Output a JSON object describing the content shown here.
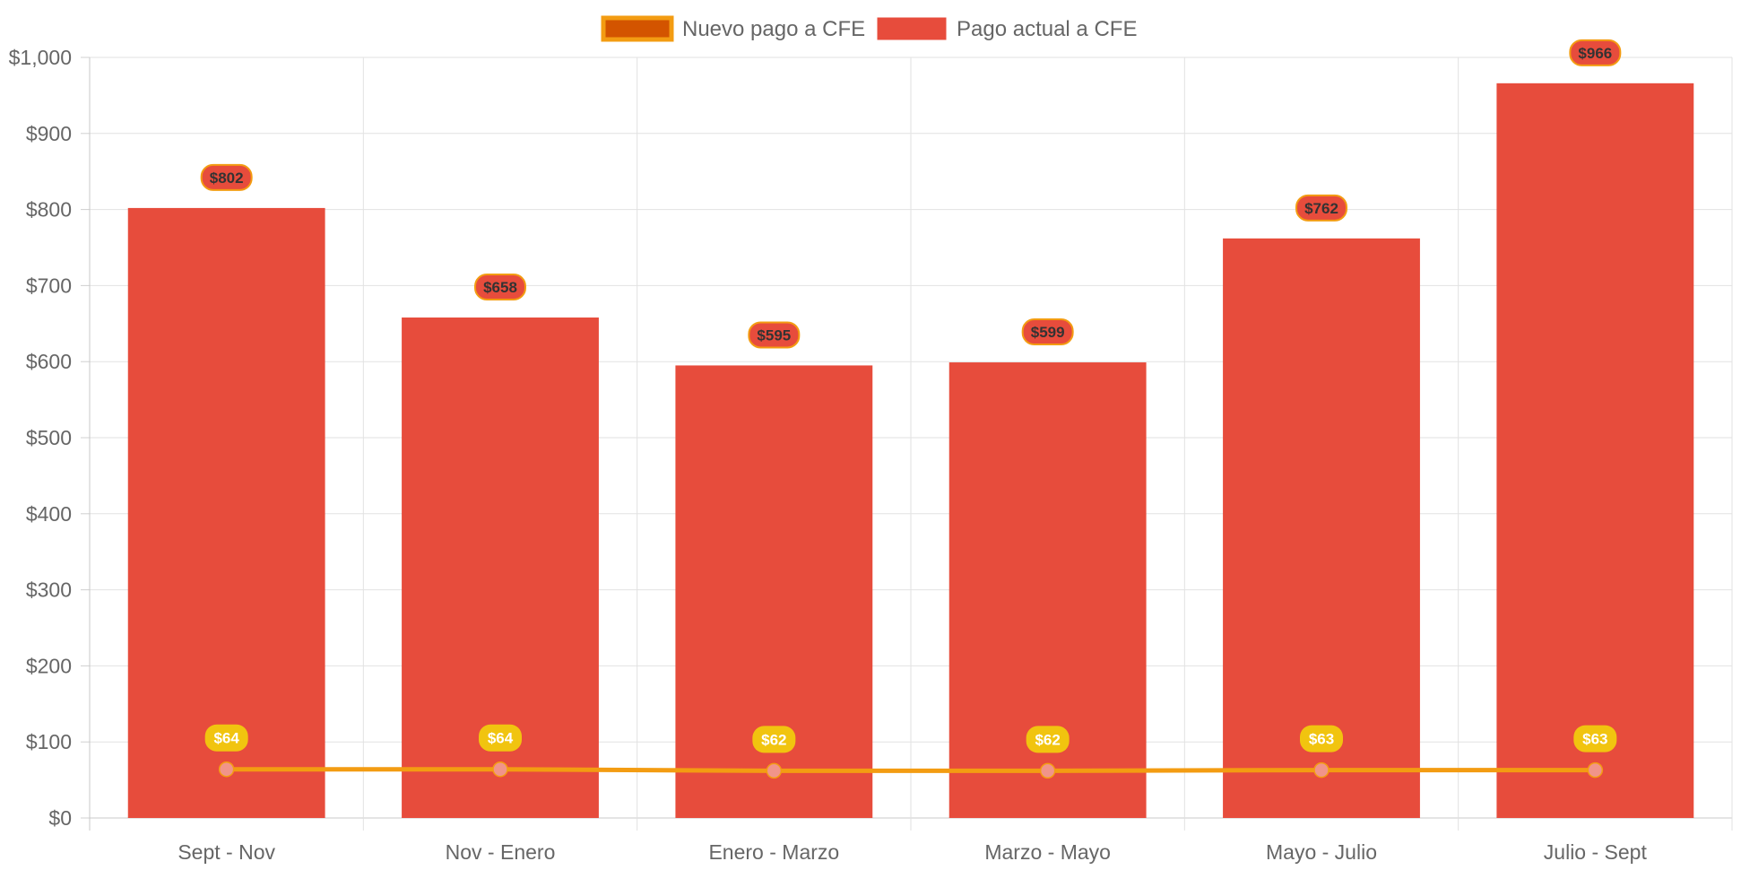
{
  "chart_data": {
    "type": "bar",
    "categories": [
      "Sept - Nov",
      "Nov - Enero",
      "Enero - Marzo",
      "Marzo - Mayo",
      "Mayo - Julio",
      "Julio - Sept"
    ],
    "series": [
      {
        "name": "Nuevo pago a CFE",
        "type": "line",
        "values": [
          64,
          64,
          62,
          62,
          63,
          63
        ],
        "labels": [
          "$64",
          "$64",
          "$62",
          "$62",
          "$63",
          "$63"
        ],
        "color": "#f39c12",
        "point_color": "#f1948a",
        "label_bg": "#f1c40f"
      },
      {
        "name": "Pago actual a CFE",
        "type": "bar",
        "values": [
          802,
          658,
          595,
          599,
          762,
          966
        ],
        "labels": [
          "$802",
          "$658",
          "$595",
          "$599",
          "$762",
          "$966"
        ],
        "color": "#e74c3c",
        "label_border": "#f39c12"
      }
    ],
    "legend": {
      "position": "top",
      "items": [
        "Nuevo pago a CFE",
        "Pago actual a CFE"
      ],
      "swatch_colors": [
        "#d35400",
        "#e74c3c"
      ],
      "swatch_borders": [
        "#f39c12",
        "#e74c3c"
      ]
    },
    "y_ticks": [
      "$0",
      "$100",
      "$200",
      "$300",
      "$400",
      "$500",
      "$600",
      "$700",
      "$800",
      "$900",
      "$1,000"
    ],
    "ylim": [
      0,
      1000
    ],
    "y_step": 100,
    "grid": true,
    "title": "",
    "xlabel": "",
    "ylabel": ""
  }
}
